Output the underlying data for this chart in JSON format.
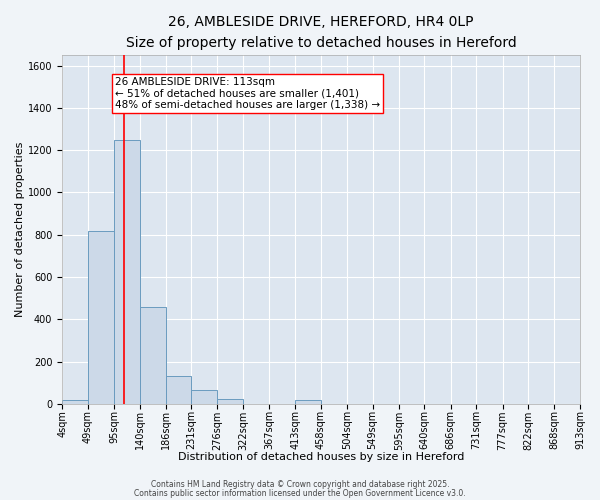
{
  "title": "26, AMBLESIDE DRIVE, HEREFORD, HR4 0LP",
  "subtitle": "Size of property relative to detached houses in Hereford",
  "xlabel": "Distribution of detached houses by size in Hereford",
  "ylabel": "Number of detached properties",
  "bar_color": "#ccd9e8",
  "bar_edge_color": "#6a9bbf",
  "background_color": "#dde6f0",
  "grid_color": "#ffffff",
  "fig_background": "#f0f4f8",
  "bin_edges": [
    4,
    49,
    95,
    140,
    186,
    231,
    276,
    322,
    367,
    413,
    458,
    504,
    549,
    595,
    640,
    686,
    731,
    777,
    822,
    868,
    913
  ],
  "bin_labels": [
    "4sqm",
    "49sqm",
    "95sqm",
    "140sqm",
    "186sqm",
    "231sqm",
    "276sqm",
    "322sqm",
    "367sqm",
    "413sqm",
    "458sqm",
    "504sqm",
    "549sqm",
    "595sqm",
    "640sqm",
    "686sqm",
    "731sqm",
    "777sqm",
    "822sqm",
    "868sqm",
    "913sqm"
  ],
  "bar_heights": [
    20,
    820,
    1250,
    460,
    130,
    65,
    22,
    0,
    0,
    18,
    0,
    0,
    0,
    0,
    0,
    0,
    0,
    0,
    0,
    0
  ],
  "red_line_x": 113,
  "ylim": [
    0,
    1650
  ],
  "yticks": [
    0,
    200,
    400,
    600,
    800,
    1000,
    1200,
    1400,
    1600
  ],
  "annotation_title": "26 AMBLESIDE DRIVE: 113sqm",
  "annotation_line1": "← 51% of detached houses are smaller (1,401)",
  "annotation_line2": "48% of semi-detached houses are larger (1,338) →",
  "footnote1": "Contains HM Land Registry data © Crown copyright and database right 2025.",
  "footnote2": "Contains public sector information licensed under the Open Government Licence v3.0.",
  "title_fontsize": 10,
  "subtitle_fontsize": 9,
  "xlabel_fontsize": 8,
  "ylabel_fontsize": 8,
  "tick_fontsize": 7,
  "annotation_fontsize": 7.5,
  "footnote_fontsize": 5.5
}
